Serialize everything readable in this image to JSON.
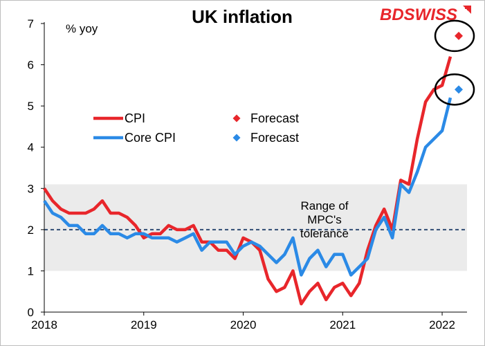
{
  "logo": {
    "part1": "BD",
    "part2": "SWISS",
    "color1": "#e8262b",
    "color2": "#e8262b"
  },
  "chart_data": {
    "type": "line",
    "title": "UK inflation",
    "ylabel": "% yoy",
    "xlabel": "",
    "ylim": [
      0,
      7
    ],
    "xlim": [
      2018.0,
      2022.25
    ],
    "yticks": [
      "0",
      "1",
      "2",
      "3",
      "4",
      "5",
      "6",
      "7"
    ],
    "xticks": [
      {
        "label": "2018",
        "value": 2018
      },
      {
        "label": "2019",
        "value": 2019
      },
      {
        "label": "2020",
        "value": 2020
      },
      {
        "label": "2021",
        "value": 2021
      },
      {
        "label": "2022",
        "value": 2022
      }
    ],
    "band": {
      "from": 1,
      "to": 3.1,
      "color": "#ebebeb"
    },
    "target_line": {
      "value": 2,
      "color": "#2e4a72"
    },
    "annotation": [
      "Range of",
      "MPC's",
      "tolerance"
    ],
    "series": [
      {
        "name": "CPI",
        "color": "#e8262b",
        "start": 2018.0,
        "step_months": 1,
        "values": [
          3.0,
          2.7,
          2.5,
          2.4,
          2.4,
          2.4,
          2.5,
          2.7,
          2.4,
          2.4,
          2.3,
          2.1,
          1.8,
          1.9,
          1.9,
          2.1,
          2.0,
          2.0,
          2.1,
          1.7,
          1.7,
          1.5,
          1.5,
          1.3,
          1.8,
          1.7,
          1.5,
          0.8,
          0.5,
          0.6,
          1.0,
          0.2,
          0.5,
          0.7,
          0.3,
          0.6,
          0.7,
          0.4,
          0.7,
          1.5,
          2.1,
          2.5,
          2.0,
          3.2,
          3.1,
          4.2,
          5.1,
          5.4,
          5.5,
          6.2
        ]
      },
      {
        "name": "Core CPI",
        "color": "#2b8ae6",
        "start": 2018.0,
        "step_months": 1,
        "values": [
          2.7,
          2.4,
          2.3,
          2.1,
          2.1,
          1.9,
          1.9,
          2.1,
          1.9,
          1.9,
          1.8,
          1.9,
          1.9,
          1.8,
          1.8,
          1.8,
          1.7,
          1.8,
          1.9,
          1.5,
          1.7,
          1.7,
          1.7,
          1.4,
          1.6,
          1.7,
          1.6,
          1.4,
          1.2,
          1.4,
          1.8,
          0.9,
          1.3,
          1.5,
          1.1,
          1.4,
          1.4,
          0.9,
          1.1,
          1.3,
          2.0,
          2.3,
          1.8,
          3.1,
          2.9,
          3.4,
          4.0,
          4.2,
          4.4,
          5.2
        ]
      }
    ],
    "forecasts": [
      {
        "name": "Forecast",
        "series": "CPI",
        "x": 2022.1667,
        "y": 6.7,
        "color": "#e8262b"
      },
      {
        "name": "Forecast",
        "series": "Core CPI",
        "x": 2022.1667,
        "y": 5.4,
        "color": "#2b8ae6"
      }
    ],
    "legend": [
      {
        "label": "CPI",
        "kind": "line",
        "color": "#e8262b"
      },
      {
        "label": "Forecast",
        "kind": "marker",
        "color": "#e8262b"
      },
      {
        "label": "Core CPI",
        "kind": "line",
        "color": "#2b8ae6"
      },
      {
        "label": "Forecast",
        "kind": "marker",
        "color": "#2b8ae6"
      }
    ]
  }
}
